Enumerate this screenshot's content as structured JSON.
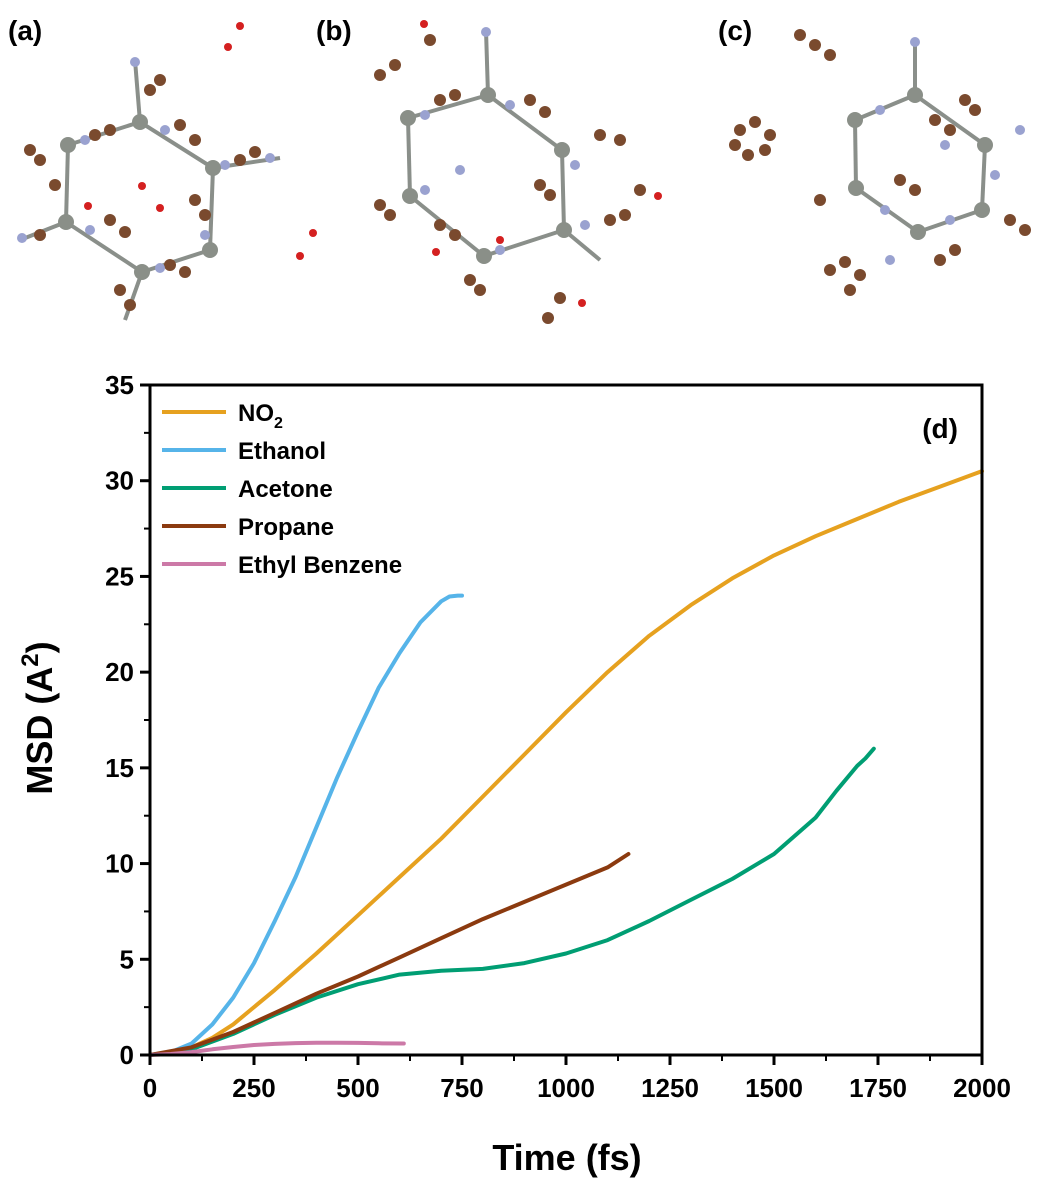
{
  "panels": {
    "a": "(a)",
    "b": "(b)",
    "c": "(c)"
  },
  "chart_data": {
    "type": "line",
    "panel_label": "(d)",
    "xlabel": "Time (fs)",
    "ylabel": {
      "prefix": "MSD (A",
      "sup": "2",
      "suffix": ")"
    },
    "xlim": [
      0,
      2000
    ],
    "ylim": [
      0,
      35
    ],
    "x_ticks": [
      0,
      250,
      500,
      750,
      1000,
      1250,
      1500,
      1750,
      2000
    ],
    "y_ticks": [
      0,
      5,
      10,
      15,
      20,
      25,
      30,
      35
    ],
    "grid": false,
    "legend_position": "top-left",
    "series": [
      {
        "name": "NO",
        "name_sub": "2",
        "color": "#E6A11F",
        "x": [
          0,
          50,
          100,
          150,
          200,
          300,
          400,
          500,
          600,
          700,
          800,
          900,
          1000,
          1100,
          1200,
          1300,
          1400,
          1500,
          1600,
          1700,
          1800,
          1900,
          2000
        ],
        "y": [
          0,
          0.1,
          0.4,
          0.9,
          1.6,
          3.4,
          5.3,
          7.3,
          9.3,
          11.3,
          13.5,
          15.7,
          17.9,
          20.0,
          21.9,
          23.5,
          24.9,
          26.1,
          27.1,
          28.0,
          28.9,
          29.7,
          30.5
        ]
      },
      {
        "name": "Ethanol",
        "name_sub": "",
        "color": "#56B4E9",
        "x": [
          0,
          50,
          100,
          150,
          200,
          250,
          300,
          350,
          400,
          450,
          500,
          550,
          600,
          650,
          700,
          720,
          740,
          750
        ],
        "y": [
          0,
          0.15,
          0.6,
          1.6,
          3.0,
          4.8,
          7.0,
          9.3,
          11.9,
          14.5,
          16.9,
          19.2,
          21.0,
          22.6,
          23.7,
          23.95,
          24.0,
          24.0
        ]
      },
      {
        "name": "Acetone",
        "name_sub": "",
        "color": "#009E73",
        "x": [
          0,
          100,
          200,
          300,
          400,
          500,
          600,
          700,
          800,
          900,
          1000,
          1100,
          1200,
          1300,
          1400,
          1500,
          1600,
          1650,
          1700,
          1720,
          1740
        ],
        "y": [
          0,
          0.3,
          1.1,
          2.1,
          3.0,
          3.7,
          4.2,
          4.4,
          4.5,
          4.8,
          5.3,
          6.0,
          7.0,
          8.1,
          9.2,
          10.5,
          12.4,
          13.8,
          15.1,
          15.5,
          16.0
        ]
      },
      {
        "name": "Propane",
        "name_sub": "",
        "color": "#8B3A0F",
        "x": [
          0,
          100,
          200,
          300,
          400,
          500,
          600,
          700,
          800,
          900,
          1000,
          1100,
          1150
        ],
        "y": [
          0,
          0.4,
          1.2,
          2.2,
          3.2,
          4.1,
          5.1,
          6.1,
          7.1,
          8.0,
          8.9,
          9.8,
          10.5
        ]
      },
      {
        "name": "Ethyl Benzene",
        "name_sub": "",
        "color": "#CC79A7",
        "x": [
          0,
          50,
          100,
          150,
          200,
          250,
          300,
          350,
          400,
          450,
          500,
          550,
          610
        ],
        "y": [
          0,
          0.05,
          0.15,
          0.3,
          0.42,
          0.52,
          0.58,
          0.62,
          0.64,
          0.64,
          0.63,
          0.61,
          0.6
        ]
      }
    ]
  }
}
